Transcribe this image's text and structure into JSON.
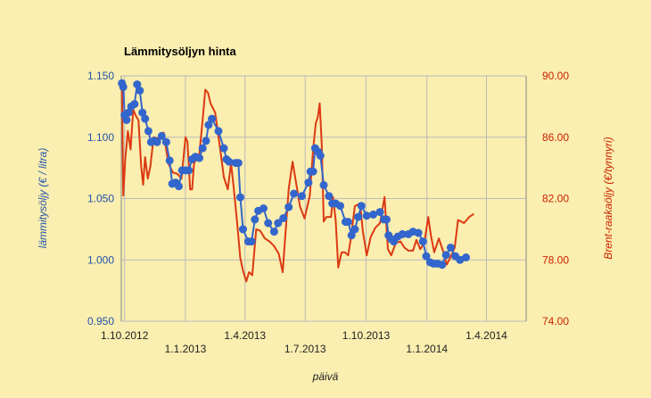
{
  "chart_data": {
    "type": "line",
    "title": "Lämmitysöljyn hinta",
    "xlabel": "päivä",
    "ylabel_left": "lämmitysöljy (€ / litra)",
    "ylabel_right": "Brent-raakaöljy (€/tynnyri)",
    "x_tick_labels": [
      {
        "label": "1.10.2012",
        "date": "2012-10-01",
        "row": 1
      },
      {
        "label": "1.1.2013",
        "date": "2013-01-01",
        "row": 2
      },
      {
        "label": "1.4.2013",
        "date": "2013-04-01",
        "row": 1
      },
      {
        "label": "1.7.2013",
        "date": "2013-07-01",
        "row": 2
      },
      {
        "label": "1.10.2013",
        "date": "2013-10-01",
        "row": 1
      },
      {
        "label": "1.1.2014",
        "date": "2014-01-01",
        "row": 2
      },
      {
        "label": "1.4.2014",
        "date": "2014-04-01",
        "row": 1
      }
    ],
    "xlim": [
      "2012-09-26",
      "2014-05-31"
    ],
    "ylim_left": [
      0.95,
      1.15
    ],
    "ylim_right": [
      74,
      90
    ],
    "yticks_left": [
      "0.950",
      "1.000",
      "1.050",
      "1.100",
      "1.150"
    ],
    "yticks_right": [
      "74.00",
      "78.00",
      "82.00",
      "86.00",
      "90.00"
    ],
    "grid": true,
    "colors": {
      "background": "#faeeb0",
      "grid": "#bbbbbb",
      "heating_oil": "#3366cc",
      "brent": "#dc3912",
      "left_axis_text": "#2255aa",
      "right_axis_text": "#cc2200"
    },
    "series": [
      {
        "axis": "left",
        "marker": "circle",
        "points": [
          [
            "2012-09-27",
            1.144
          ],
          [
            "2012-09-29",
            1.141
          ],
          [
            "2012-10-01",
            1.118
          ],
          [
            "2012-10-04",
            1.114
          ],
          [
            "2012-10-07",
            1.12
          ],
          [
            "2012-10-11",
            1.125
          ],
          [
            "2012-10-16",
            1.127
          ],
          [
            "2012-10-20",
            1.143
          ],
          [
            "2012-10-24",
            1.138
          ],
          [
            "2012-10-28",
            1.12
          ],
          [
            "2012-11-01",
            1.115
          ],
          [
            "2012-11-06",
            1.105
          ],
          [
            "2012-11-10",
            1.096
          ],
          [
            "2012-11-15",
            1.097
          ],
          [
            "2012-11-19",
            1.096
          ],
          [
            "2012-11-26",
            1.101
          ],
          [
            "2012-12-03",
            1.096
          ],
          [
            "2012-12-08",
            1.081
          ],
          [
            "2012-12-12",
            1.062
          ],
          [
            "2012-12-17",
            1.063
          ],
          [
            "2012-12-22",
            1.06
          ],
          [
            "2012-12-27",
            1.073
          ],
          [
            "2013-01-01",
            1.073
          ],
          [
            "2013-01-06",
            1.073
          ],
          [
            "2013-01-11",
            1.082
          ],
          [
            "2013-01-16",
            1.084
          ],
          [
            "2013-01-22",
            1.083
          ],
          [
            "2013-01-27",
            1.091
          ],
          [
            "2013-02-01",
            1.097
          ],
          [
            "2013-02-05",
            1.11
          ],
          [
            "2013-02-10",
            1.115
          ],
          [
            "2013-02-20",
            1.105
          ],
          [
            "2013-02-28",
            1.091
          ],
          [
            "2013-03-04",
            1.082
          ],
          [
            "2013-03-08",
            1.08
          ],
          [
            "2013-03-18",
            1.079
          ],
          [
            "2013-03-22",
            1.079
          ],
          [
            "2013-03-25",
            1.051
          ],
          [
            "2013-03-29",
            1.025
          ],
          [
            "2013-04-06",
            1.015
          ],
          [
            "2013-04-11",
            1.015
          ],
          [
            "2013-04-16",
            1.033
          ],
          [
            "2013-04-21",
            1.04
          ],
          [
            "2013-04-29",
            1.042
          ],
          [
            "2013-05-06",
            1.03
          ],
          [
            "2013-05-15",
            1.023
          ],
          [
            "2013-05-21",
            1.03
          ],
          [
            "2013-05-29",
            1.034
          ],
          [
            "2013-06-06",
            1.043
          ],
          [
            "2013-06-14",
            1.054
          ],
          [
            "2013-06-26",
            1.052
          ],
          [
            "2013-07-06",
            1.063
          ],
          [
            "2013-07-09",
            1.072
          ],
          [
            "2013-07-13",
            1.072
          ],
          [
            "2013-07-16",
            1.091
          ],
          [
            "2013-07-21",
            1.088
          ],
          [
            "2013-07-24",
            1.085
          ],
          [
            "2013-07-29",
            1.061
          ],
          [
            "2013-08-06",
            1.052
          ],
          [
            "2013-08-11",
            1.046
          ],
          [
            "2013-08-16",
            1.046
          ],
          [
            "2013-08-23",
            1.044
          ],
          [
            "2013-08-31",
            1.031
          ],
          [
            "2013-09-04",
            1.031
          ],
          [
            "2013-09-09",
            1.02
          ],
          [
            "2013-09-14",
            1.025
          ],
          [
            "2013-09-19",
            1.035
          ],
          [
            "2013-09-24",
            1.044
          ],
          [
            "2013-10-02",
            1.036
          ],
          [
            "2013-10-12",
            1.037
          ],
          [
            "2013-10-22",
            1.039
          ],
          [
            "2013-10-28",
            1.033
          ],
          [
            "2013-11-01",
            1.033
          ],
          [
            "2013-11-04",
            1.02
          ],
          [
            "2013-11-08",
            1.017
          ],
          [
            "2013-11-12",
            1.015
          ],
          [
            "2013-11-18",
            1.019
          ],
          [
            "2013-11-25",
            1.021
          ],
          [
            "2013-12-04",
            1.021
          ],
          [
            "2013-12-11",
            1.023
          ],
          [
            "2013-12-19",
            1.022
          ],
          [
            "2013-12-26",
            1.015
          ],
          [
            "2013-12-31",
            1.003
          ],
          [
            "2014-01-06",
            0.998
          ],
          [
            "2014-01-11",
            0.997
          ],
          [
            "2014-01-17",
            0.997
          ],
          [
            "2014-01-24",
            0.996
          ],
          [
            "2014-01-30",
            1.004
          ],
          [
            "2014-02-06",
            1.01
          ],
          [
            "2014-02-13",
            1.003
          ],
          [
            "2014-02-20",
            1.0
          ],
          [
            "2014-03-01",
            1.002
          ]
        ]
      },
      {
        "axis": "right",
        "marker": "none",
        "points": [
          [
            "2012-09-27",
            89.6
          ],
          [
            "2012-09-29",
            82.2
          ],
          [
            "2012-10-02",
            84.6
          ],
          [
            "2012-10-06",
            86.4
          ],
          [
            "2012-10-10",
            85.2
          ],
          [
            "2012-10-14",
            87.8
          ],
          [
            "2012-10-18",
            87.4
          ],
          [
            "2012-10-22",
            87.1
          ],
          [
            "2012-10-26",
            84.1
          ],
          [
            "2012-10-29",
            82.9
          ],
          [
            "2012-11-01",
            84.7
          ],
          [
            "2012-11-05",
            83.3
          ],
          [
            "2012-11-09",
            84.1
          ],
          [
            "2012-11-14",
            86.0
          ],
          [
            "2012-11-22",
            85.9
          ],
          [
            "2012-11-29",
            86.3
          ],
          [
            "2012-12-06",
            84.3
          ],
          [
            "2012-12-13",
            83.7
          ],
          [
            "2012-12-20",
            83.6
          ],
          [
            "2012-12-26",
            83.3
          ],
          [
            "2013-01-01",
            86.0
          ],
          [
            "2013-01-04",
            85.7
          ],
          [
            "2013-01-08",
            82.6
          ],
          [
            "2013-01-11",
            82.6
          ],
          [
            "2013-01-14",
            84.3
          ],
          [
            "2013-01-18",
            84.6
          ],
          [
            "2013-01-22",
            84.9
          ],
          [
            "2013-01-27",
            87.1
          ],
          [
            "2013-01-31",
            89.1
          ],
          [
            "2013-02-04",
            88.9
          ],
          [
            "2013-02-08",
            88.2
          ],
          [
            "2013-02-15",
            87.6
          ],
          [
            "2013-02-22",
            85.4
          ],
          [
            "2013-02-28",
            83.4
          ],
          [
            "2013-03-06",
            82.6
          ],
          [
            "2013-03-11",
            84.3
          ],
          [
            "2013-03-15",
            82.7
          ],
          [
            "2013-03-20",
            80.5
          ],
          [
            "2013-03-25",
            78.1
          ],
          [
            "2013-03-29",
            77.3
          ],
          [
            "2013-04-03",
            76.6
          ],
          [
            "2013-04-07",
            77.2
          ],
          [
            "2013-04-12",
            77.0
          ],
          [
            "2013-04-18",
            80.0
          ],
          [
            "2013-04-24",
            79.9
          ],
          [
            "2013-05-01",
            79.4
          ],
          [
            "2013-05-08",
            79.2
          ],
          [
            "2013-05-15",
            78.9
          ],
          [
            "2013-05-22",
            78.4
          ],
          [
            "2013-05-28",
            77.2
          ],
          [
            "2013-06-06",
            82.6
          ],
          [
            "2013-06-12",
            84.4
          ],
          [
            "2013-06-17",
            83.1
          ],
          [
            "2013-06-23",
            81.5
          ],
          [
            "2013-06-30",
            80.7
          ],
          [
            "2013-07-08",
            82.2
          ],
          [
            "2013-07-13",
            85.2
          ],
          [
            "2013-07-17",
            86.9
          ],
          [
            "2013-07-20",
            87.3
          ],
          [
            "2013-07-23",
            88.2
          ],
          [
            "2013-07-26",
            85.5
          ],
          [
            "2013-07-29",
            80.5
          ],
          [
            "2013-08-02",
            80.8
          ],
          [
            "2013-08-09",
            80.8
          ],
          [
            "2013-08-12",
            82.1
          ],
          [
            "2013-08-16",
            80.6
          ],
          [
            "2013-08-20",
            77.5
          ],
          [
            "2013-08-25",
            78.5
          ],
          [
            "2013-08-30",
            78.5
          ],
          [
            "2013-09-04",
            78.3
          ],
          [
            "2013-09-08",
            79.4
          ],
          [
            "2013-09-14",
            81.5
          ],
          [
            "2013-09-22",
            81.7
          ],
          [
            "2013-09-26",
            79.9
          ],
          [
            "2013-10-02",
            78.3
          ],
          [
            "2013-10-08",
            79.5
          ],
          [
            "2013-10-15",
            80.1
          ],
          [
            "2013-10-22",
            80.4
          ],
          [
            "2013-10-29",
            82.1
          ],
          [
            "2013-11-03",
            78.7
          ],
          [
            "2013-11-08",
            78.3
          ],
          [
            "2013-11-15",
            79.1
          ],
          [
            "2013-11-22",
            79.2
          ],
          [
            "2013-11-28",
            78.8
          ],
          [
            "2013-12-04",
            78.6
          ],
          [
            "2013-12-11",
            78.6
          ],
          [
            "2013-12-16",
            79.3
          ],
          [
            "2013-12-22",
            78.7
          ],
          [
            "2013-12-28",
            79.1
          ],
          [
            "2014-01-03",
            80.8
          ],
          [
            "2014-01-07",
            79.6
          ],
          [
            "2014-01-12",
            78.5
          ],
          [
            "2014-01-19",
            79.4
          ],
          [
            "2014-01-26",
            78.5
          ],
          [
            "2014-01-31",
            77.7
          ],
          [
            "2014-02-06",
            78.2
          ],
          [
            "2014-02-12",
            78.8
          ],
          [
            "2014-02-17",
            80.6
          ],
          [
            "2014-02-22",
            80.5
          ],
          [
            "2014-02-26",
            80.4
          ],
          [
            "2014-03-06",
            80.8
          ],
          [
            "2014-03-13",
            81.0
          ]
        ]
      }
    ]
  }
}
